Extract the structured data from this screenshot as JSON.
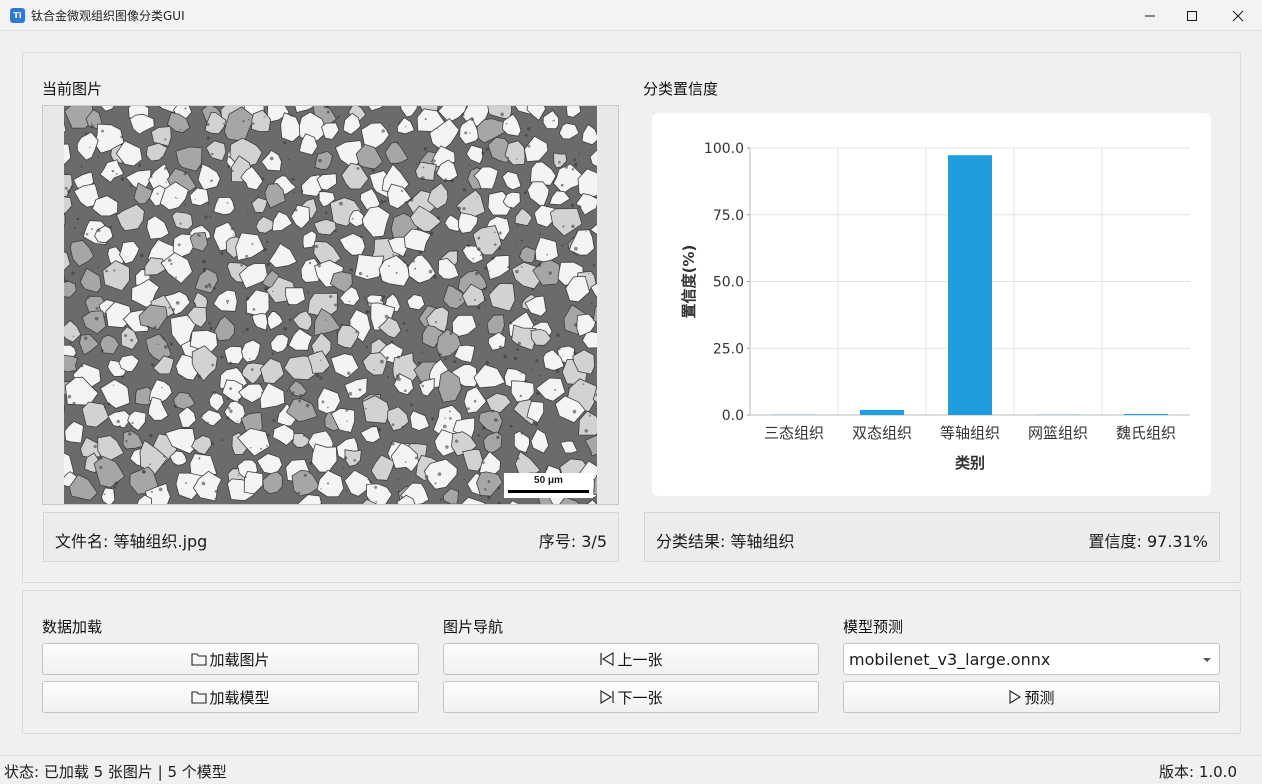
{
  "window": {
    "title": "钛合金微观组织图像分类GUI",
    "icon_text": "Ti"
  },
  "image_panel": {
    "label": "当前图片",
    "scale_bar": "50 μm",
    "filename": "文件名: 等轴组织.jpg",
    "index": "序号: 3/5"
  },
  "chart_panel": {
    "label": "分类置信度",
    "result": "分类结果: 等轴组织",
    "confidence": "置信度: 97.31%"
  },
  "chart_data": {
    "type": "bar",
    "categories": [
      "三态组织",
      "双态组织",
      "等轴组织",
      "网篮组织",
      "魏氏组织"
    ],
    "values": [
      0.1,
      1.9,
      97.3,
      0.1,
      0.4
    ],
    "xlabel": "类别",
    "ylabel": "置信度(%)",
    "ylim": [
      0,
      100
    ],
    "yticks": [
      "0.0",
      "25.0",
      "50.0",
      "75.0",
      "100.0"
    ],
    "grid": true,
    "bar_color": "#1f9ede"
  },
  "controls": {
    "data_load": {
      "label": "数据加载",
      "load_images": "加载图片",
      "load_models": "加载模型"
    },
    "navigation": {
      "label": "图片导航",
      "prev": "上一张",
      "next": "下一张"
    },
    "prediction": {
      "label": "模型预测",
      "model_selected": "mobilenet_v3_large.onnx",
      "predict": "预测"
    }
  },
  "status": {
    "left": "状态: 已加载 5 张图片 | 5 个模型",
    "right": "版本: 1.0.0"
  }
}
